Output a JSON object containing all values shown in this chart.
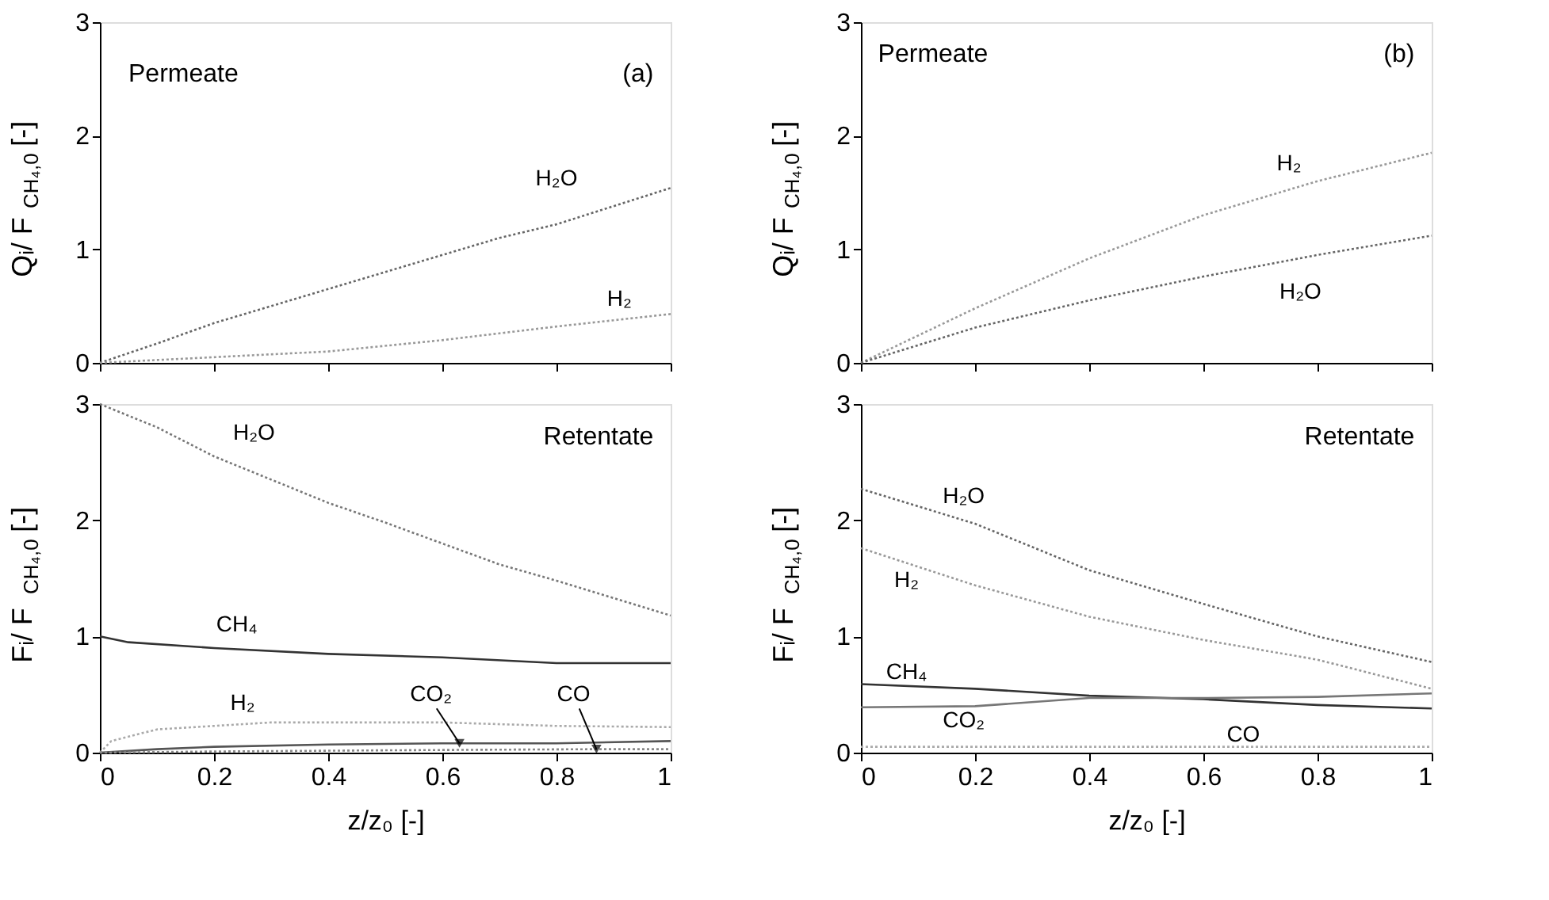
{
  "chart_data": [
    {
      "type": "line",
      "ylabel": "Qᵢ/ F$_{CH₄,0}$ [-]",
      "xlim": [
        0,
        1
      ],
      "xticks": [
        0,
        0.2,
        0.4,
        0.6,
        0.8,
        1
      ],
      "ylim": [
        0,
        3
      ],
      "yticks": [
        0,
        1,
        2,
        3
      ],
      "tick_labels": "y",
      "annotations": [
        "Permeate",
        "(a)"
      ],
      "series": [
        {
          "name": "H₂O",
          "color": "#666666",
          "line_style": "dotted",
          "x": [
            0,
            0.1,
            0.2,
            0.3,
            0.4,
            0.5,
            0.6,
            0.7,
            0.8,
            0.9,
            1
          ],
          "values": [
            0,
            0.17,
            0.35,
            0.5,
            0.65,
            0.8,
            0.95,
            1.1,
            1.22,
            1.38,
            1.54
          ]
        },
        {
          "name": "H₂",
          "color": "#999999",
          "line_style": "dotted",
          "x": [
            0,
            0.2,
            0.4,
            0.6,
            0.8,
            1
          ],
          "values": [
            0,
            0.05,
            0.1,
            0.2,
            0.32,
            0.43
          ]
        }
      ]
    },
    {
      "type": "line",
      "ylabel": "Qᵢ/ F$_{CH₄,0}$ [-]",
      "xlim": [
        0,
        1
      ],
      "xticks": [
        0,
        0.2,
        0.4,
        0.6,
        0.8,
        1
      ],
      "ylim": [
        0,
        3
      ],
      "yticks": [
        0,
        1,
        2,
        3
      ],
      "tick_labels": "y",
      "annotations": [
        "Permeate",
        "(b)"
      ],
      "series": [
        {
          "name": "H₂",
          "color": "#999999",
          "line_style": "dotted",
          "x": [
            0,
            0.2,
            0.4,
            0.6,
            0.8,
            1
          ],
          "values": [
            0,
            0.48,
            0.92,
            1.3,
            1.6,
            1.85
          ]
        },
        {
          "name": "H₂O",
          "color": "#666666",
          "line_style": "dotted",
          "x": [
            0,
            0.2,
            0.4,
            0.6,
            0.8,
            1
          ],
          "values": [
            0,
            0.31,
            0.55,
            0.76,
            0.95,
            1.12
          ]
        }
      ]
    },
    {
      "type": "line",
      "xlabel": "z/z₀ [-]",
      "ylabel": "Fᵢ/ F$_{CH₄,0}$ [-]",
      "xlim": [
        0,
        1
      ],
      "xticks": [
        0,
        0.2,
        0.4,
        0.6,
        0.8,
        1
      ],
      "ylim": [
        0,
        3
      ],
      "yticks": [
        0,
        1,
        2,
        3
      ],
      "annotations": [
        "Retentate"
      ],
      "series": [
        {
          "name": "H₂O",
          "color": "#777777",
          "line_style": "dotted",
          "x": [
            0,
            0.1,
            0.2,
            0.3,
            0.4,
            0.5,
            0.6,
            0.7,
            0.8,
            0.9,
            1
          ],
          "values": [
            3.0,
            2.8,
            2.55,
            2.35,
            2.15,
            1.98,
            1.8,
            1.62,
            1.48,
            1.33,
            1.18
          ]
        },
        {
          "name": "CH₄",
          "color": "#333333",
          "line_style": "solid",
          "x": [
            0,
            0.05,
            0.2,
            0.4,
            0.6,
            0.8,
            1
          ],
          "values": [
            1.0,
            0.95,
            0.9,
            0.85,
            0.82,
            0.77,
            0.77
          ]
        },
        {
          "name": "H₂",
          "color": "#aaaaaa",
          "line_style": "dotted",
          "x": [
            0,
            0.02,
            0.1,
            0.3,
            0.6,
            0.8,
            1
          ],
          "values": [
            0,
            0.1,
            0.2,
            0.26,
            0.26,
            0.23,
            0.22
          ]
        },
        {
          "name": "CO₂",
          "color": "#555555",
          "line_style": "solid",
          "x": [
            0,
            0.1,
            0.2,
            0.4,
            0.6,
            0.8,
            1
          ],
          "values": [
            0,
            0.03,
            0.05,
            0.07,
            0.08,
            0.08,
            0.1
          ]
        },
        {
          "name": "CO",
          "color": "#888888",
          "line_style": "dotted",
          "x": [
            0,
            0.2,
            0.5,
            0.87,
            1
          ],
          "values": [
            0,
            0.01,
            0.02,
            0.03,
            0.03
          ]
        }
      ]
    },
    {
      "type": "line",
      "xlabel": "z/z₀ [-]",
      "ylabel": "Fᵢ/ F$_{CH₄,0}$ [-]",
      "xlim": [
        0,
        1
      ],
      "xticks": [
        0,
        0.2,
        0.4,
        0.6,
        0.8,
        1
      ],
      "ylim": [
        0,
        3
      ],
      "yticks": [
        0,
        1,
        2,
        3
      ],
      "annotations": [
        "Retentate"
      ],
      "series": [
        {
          "name": "H₂O",
          "color": "#666666",
          "line_style": "dotted",
          "x": [
            0,
            0.2,
            0.4,
            0.6,
            0.8,
            1
          ],
          "values": [
            2.27,
            1.97,
            1.57,
            1.28,
            1.0,
            0.78
          ]
        },
        {
          "name": "H₂",
          "color": "#999999",
          "line_style": "dotted",
          "x": [
            0,
            0.2,
            0.4,
            0.6,
            0.8,
            1
          ],
          "values": [
            1.76,
            1.44,
            1.17,
            0.97,
            0.8,
            0.55
          ]
        },
        {
          "name": "CH₄",
          "color": "#333333",
          "line_style": "solid",
          "x": [
            0,
            0.2,
            0.4,
            0.6,
            0.8,
            1
          ],
          "values": [
            0.59,
            0.55,
            0.49,
            0.46,
            0.41,
            0.38
          ]
        },
        {
          "name": "CO₂",
          "color": "#777777",
          "line_style": "solid",
          "x": [
            0,
            0.2,
            0.4,
            0.6,
            0.8,
            1
          ],
          "values": [
            0.39,
            0.4,
            0.47,
            0.47,
            0.48,
            0.51
          ]
        },
        {
          "name": "CO",
          "color": "#aaaaaa",
          "line_style": "dotted",
          "x": [
            0,
            0.5,
            1
          ],
          "values": [
            0.05,
            0.05,
            0.05
          ]
        }
      ]
    }
  ]
}
